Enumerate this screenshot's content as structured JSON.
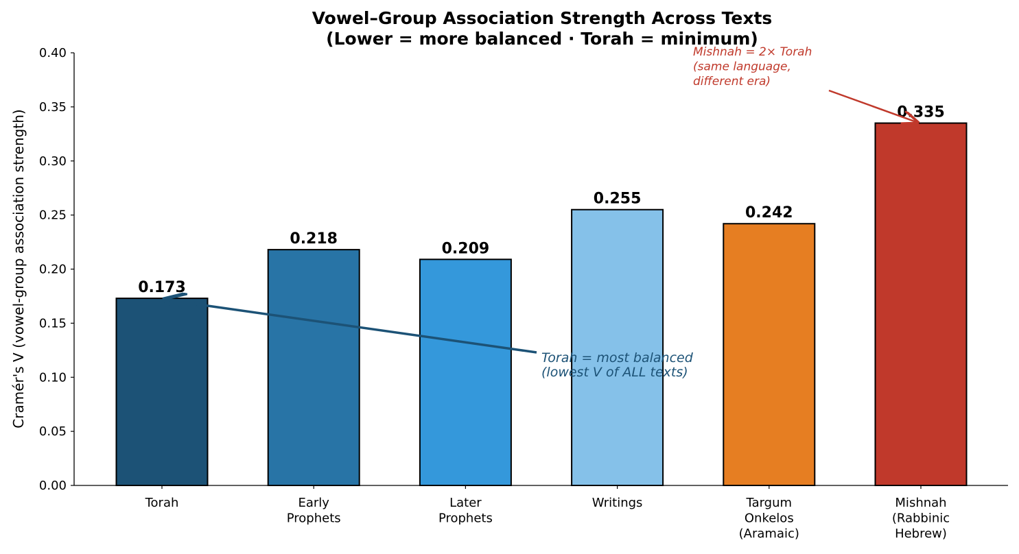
{
  "chart_data": {
    "type": "bar",
    "title": "Vowel–Group Association Strength Across Texts",
    "subtitle": "(Lower = more balanced · Torah = minimum)",
    "xlabel": "",
    "ylabel": "Cramér's V (vowel-group association strength)",
    "ylim": [
      0,
      0.4
    ],
    "yticks": [
      "0.00",
      "0.05",
      "0.10",
      "0.15",
      "0.20",
      "0.25",
      "0.30",
      "0.35",
      "0.40"
    ],
    "categories": [
      [
        "Torah"
      ],
      [
        "Early",
        "Prophets"
      ],
      [
        "Later",
        "Prophets"
      ],
      [
        "Writings"
      ],
      [
        "Targum",
        "Onkelos",
        "(Aramaic)"
      ],
      [
        "Mishnah",
        "(Rabbinic",
        "Hebrew)"
      ]
    ],
    "values": [
      0.173,
      0.218,
      0.209,
      0.255,
      0.242,
      0.335
    ],
    "value_labels": [
      "0.173",
      "0.218",
      "0.209",
      "0.255",
      "0.242",
      "0.335"
    ],
    "colors": [
      "#1c5276",
      "#2874a6",
      "#3498db",
      "#85c1e9",
      "#e67e22",
      "#c0392b"
    ],
    "grid": false,
    "annotations": [
      {
        "lines": [
          "Torah = most balanced",
          "(lowest V of ALL texts)"
        ],
        "color": "#1c5276",
        "target_category": 0,
        "target_value": 0.173,
        "text_anchor_x_category": 2.5,
        "text_anchor_value": 0.122
      },
      {
        "lines": [
          "Mishnah = 2× Torah",
          "(same language,",
          "different era)"
        ],
        "color": "#c0392b",
        "target_category": 5,
        "target_value": 0.335,
        "text_anchor_x_category": 4.42,
        "text_anchor_value": 0.365
      }
    ]
  }
}
